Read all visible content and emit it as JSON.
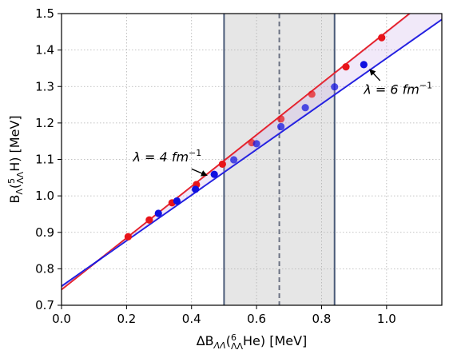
{
  "chart_data": {
    "type": "scatter",
    "xlabel": {
      "main": "ΔB",
      "sub": "ΛΛ",
      "open": "(",
      "pre_sup": "6",
      "pre_sub": "ΛΛ",
      "tail": "He) [MeV]"
    },
    "ylabel": {
      "main": "B",
      "sub": "Λ",
      "open": "(",
      "pre_sup": "5",
      "pre_sub": "ΛΛ",
      "tail": "H) [MeV]"
    },
    "xlim": [
      0.0,
      1.17
    ],
    "ylim": [
      0.7,
      1.5
    ],
    "xticks": [
      0.0,
      0.2,
      0.4,
      0.6,
      0.8,
      1.0
    ],
    "xtick_labels": [
      "0.0",
      "0.2",
      "0.4",
      "0.6",
      "0.8",
      "1.0"
    ],
    "yticks": [
      0.7,
      0.8,
      0.9,
      1.0,
      1.1,
      1.2,
      1.3,
      1.4,
      1.5
    ],
    "ytick_labels": [
      "0.7",
      "0.8",
      "0.9",
      "1.0",
      "1.1",
      "1.2",
      "1.3",
      "1.4",
      "1.5"
    ],
    "grid": true,
    "band": {
      "x_min": 0.5,
      "x_max": 0.84,
      "x_center": 0.67,
      "color": "#e6e6e6",
      "edge_color": "#4a5a78",
      "center_color": "#6b7282"
    },
    "series": [
      {
        "name": "λ = 4 fm⁻¹",
        "color": "#e8141a",
        "points": [
          [
            0.205,
            0.888
          ],
          [
            0.27,
            0.934
          ],
          [
            0.34,
            0.981
          ],
          [
            0.415,
            1.031
          ],
          [
            0.495,
            1.087
          ],
          [
            0.585,
            1.146
          ],
          [
            0.675,
            1.211
          ],
          [
            0.77,
            1.279
          ],
          [
            0.875,
            1.354
          ],
          [
            0.985,
            1.434
          ]
        ],
        "fit_line": [
          [
            0.0,
            0.743
          ],
          [
            1.17,
            1.57
          ]
        ]
      },
      {
        "name": "λ = 6 fm⁻¹",
        "color": "#1010e0",
        "points": [
          [
            0.298,
            0.952
          ],
          [
            0.355,
            0.986
          ],
          [
            0.412,
            1.018
          ],
          [
            0.47,
            1.059
          ],
          [
            0.53,
            1.099
          ],
          [
            0.6,
            1.143
          ],
          [
            0.675,
            1.19
          ],
          [
            0.75,
            1.242
          ],
          [
            0.84,
            1.299
          ],
          [
            0.93,
            1.36
          ]
        ],
        "fit_line": [
          [
            0.0,
            0.752
          ],
          [
            1.17,
            1.484
          ]
        ]
      }
    ],
    "annotations": [
      {
        "id": "lambda4",
        "pre": "λ = 4 fm",
        "sup": "−1",
        "text_at": [
          0.22,
          1.095
        ],
        "arrow_from": [
          0.4,
          1.074
        ],
        "arrow_to": [
          0.445,
          1.057
        ]
      },
      {
        "id": "lambda6",
        "pre": "λ = 6 fm",
        "sup": "−1",
        "text_at": [
          0.93,
          1.28
        ],
        "arrow_from": [
          0.98,
          1.316
        ],
        "arrow_to": [
          0.95,
          1.345
        ]
      }
    ]
  }
}
